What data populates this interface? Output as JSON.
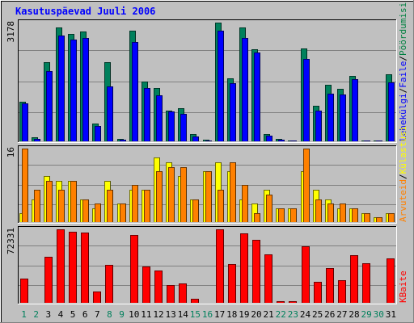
{
  "chart_data": {
    "type": "bar",
    "title": "Kasutuspäevad Juuli 2006",
    "days": [
      "1",
      "2",
      "3",
      "4",
      "5",
      "6",
      "7",
      "8",
      "9",
      "10",
      "11",
      "12",
      "13",
      "14",
      "15",
      "16",
      "17",
      "18",
      "19",
      "20",
      "21",
      "22",
      "23",
      "24",
      "25",
      "26",
      "27",
      "28",
      "29",
      "30",
      "31"
    ],
    "weekend_days": [
      "1",
      "2",
      "8",
      "9",
      "15",
      "16",
      "22",
      "23",
      "29",
      "30"
    ],
    "panels": [
      {
        "id": "pageviews",
        "ymax_label": "3178",
        "ymax": 3178,
        "legend": [
          "Lehekülgi",
          "Faile",
          "Pöördumisi"
        ],
        "legend_colors": [
          "#0000ff",
          "#0000ff",
          "#008040"
        ],
        "series": [
          {
            "name": "Pöördumisi",
            "color": "#00805c",
            "values": [
              1070,
              110,
              2110,
              3040,
              2880,
              2940,
              480,
              2120,
              70,
              2970,
              1600,
              1430,
              830,
              890,
              200,
              45,
              3178,
              1680,
              3040,
              2460,
              190,
              60,
              30,
              2480,
              950,
              1520,
              1410,
              1750,
              20,
              20,
              1790
            ]
          },
          {
            "name": "Faile",
            "color": "#0000ff",
            "values": [
              1010,
              70,
              1890,
              2840,
              2720,
              2760,
              400,
              1480,
              50,
              2660,
              1420,
              1240,
              790,
              740,
              140,
              30,
              2960,
              1560,
              2760,
              2380,
              160,
              45,
              20,
              2200,
              820,
              1270,
              1250,
              1660,
              15,
              15,
              1580
            ]
          },
          {
            "name": "Lehekülgi",
            "color": "#00bbff",
            "values": [
              0,
              0,
              0,
              0,
              0,
              0,
              0,
              0,
              0,
              0,
              0,
              0,
              0,
              0,
              0,
              0,
              0,
              0,
              0,
              0,
              0,
              0,
              0,
              0,
              0,
              0,
              0,
              0,
              0,
              0,
              0
            ]
          }
        ]
      },
      {
        "id": "visits",
        "ymax_label": "16",
        "ymax": 16,
        "legend": [
          "Arvuteid",
          "Külastusi"
        ],
        "legend_colors": [
          "#ff8000",
          "#ffff00"
        ],
        "series": [
          {
            "name": "Külastusi",
            "color": "#ffff00",
            "values": [
              2,
              5,
              10,
              9,
              9,
              5,
              3,
              9,
              4,
              7,
              7,
              14,
              13,
              10,
              5,
              11,
              13,
              11,
              5,
              4,
              7,
              3,
              3,
              11,
              7,
              5,
              3,
              3,
              2,
              1,
              2
            ]
          },
          {
            "name": "Arvuteid",
            "color": "#ff8000",
            "values": [
              16,
              7,
              9,
              7,
              9,
              5,
              4,
              7,
              4,
              8,
              7,
              11,
              12,
              12,
              5,
              11,
              7,
              13,
              8,
              2,
              6,
              3,
              3,
              16,
              5,
              4,
              4,
              3,
              2,
              1,
              2
            ]
          }
        ]
      },
      {
        "id": "kbytes",
        "ymax_label": "72331",
        "ymax": 72331,
        "legend": [
          "KBaite"
        ],
        "legend_colors": [
          "#ff0000"
        ],
        "series": [
          {
            "name": "KBaite",
            "color": "#ff0000",
            "values": [
              24000,
              0,
              45000,
              72000,
              70000,
              69500,
              11000,
              37000,
              0,
              66500,
              36000,
              32000,
              17500,
              19000,
              4000,
              0,
              72331,
              38500,
              68000,
              62000,
              48000,
              1600,
              1600,
              56000,
              21000,
              34500,
              22000,
              47000,
              39000,
              0,
              44000
            ]
          }
        ]
      }
    ]
  }
}
